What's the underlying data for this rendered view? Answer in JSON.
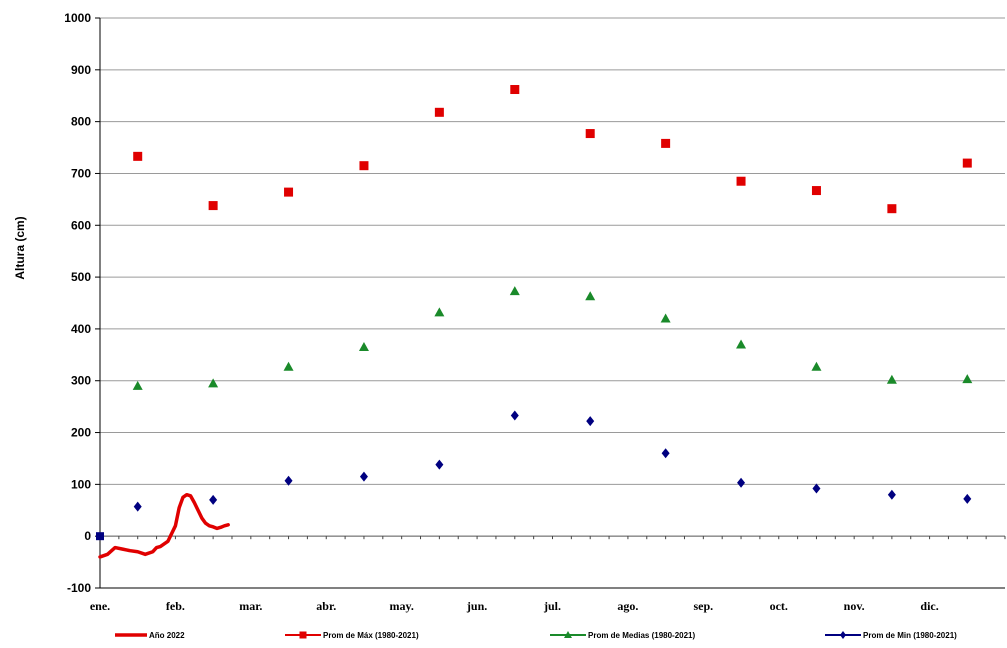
{
  "chart_data": {
    "type": "scatter",
    "title": "",
    "xlabel": "",
    "ylabel": "Altura (cm)",
    "ylim": [
      -100,
      1000
    ],
    "yticks": [
      -100,
      0,
      100,
      200,
      300,
      400,
      500,
      600,
      700,
      800,
      900,
      1000
    ],
    "yticks_label": [
      "-100",
      "0",
      "100",
      "200",
      "300",
      "400",
      "500",
      "600",
      "700",
      "800",
      "900",
      "1000"
    ],
    "categories": [
      "ene.",
      "feb.",
      "mar.",
      "abr.",
      "may.",
      "jun.",
      "jul.",
      "ago.",
      "sep.",
      "oct.",
      "nov.",
      "dic."
    ],
    "grid": true,
    "legend_position": "bottom",
    "series": [
      {
        "name": "Año 2022",
        "kind": "line",
        "color": "#e00000",
        "x": [
          0,
          0.1,
          0.2,
          0.3,
          0.4,
          0.5,
          0.6,
          0.7,
          0.75,
          0.8,
          0.9,
          1.0,
          1.05,
          1.1,
          1.15,
          1.2,
          1.25,
          1.3,
          1.35,
          1.4,
          1.45,
          1.5,
          1.55,
          1.6,
          1.65,
          1.7
        ],
        "values": [
          -40,
          -35,
          -22,
          -25,
          -28,
          -30,
          -35,
          -30,
          -22,
          -20,
          -10,
          20,
          55,
          75,
          80,
          78,
          65,
          50,
          35,
          25,
          20,
          18,
          15,
          17,
          20,
          22
        ]
      },
      {
        "name": "Prom de Máx   (1980-2021)",
        "kind": "marker",
        "marker": "square",
        "color": "#e00000",
        "x": [
          0.5,
          1.5,
          2.5,
          3.5,
          4.5,
          5.5,
          6.5,
          7.5,
          8.5,
          9.5,
          10.5,
          11.5
        ],
        "values": [
          733,
          638,
          664,
          715,
          818,
          862,
          777,
          758,
          685,
          667,
          632,
          720
        ]
      },
      {
        "name": "Prom de Medias   (1980-2021)",
        "kind": "marker",
        "marker": "triangle",
        "color": "#1a8a2a",
        "x": [
          0.5,
          1.5,
          2.5,
          3.5,
          4.5,
          5.5,
          6.5,
          7.5,
          8.5,
          9.5,
          10.5,
          11.5
        ],
        "values": [
          290,
          295,
          327,
          365,
          432,
          473,
          463,
          420,
          370,
          327,
          302,
          303
        ]
      },
      {
        "name": "Prom de Min   (1980-2021)",
        "kind": "marker",
        "marker": "diamond",
        "color": "#000080",
        "x": [
          0.5,
          1.5,
          2.5,
          3.5,
          4.5,
          5.5,
          6.5,
          7.5,
          8.5,
          9.5,
          10.5,
          11.5
        ],
        "values": [
          57,
          70,
          107,
          115,
          138,
          233,
          222,
          160,
          103,
          92,
          80,
          72
        ]
      }
    ]
  }
}
